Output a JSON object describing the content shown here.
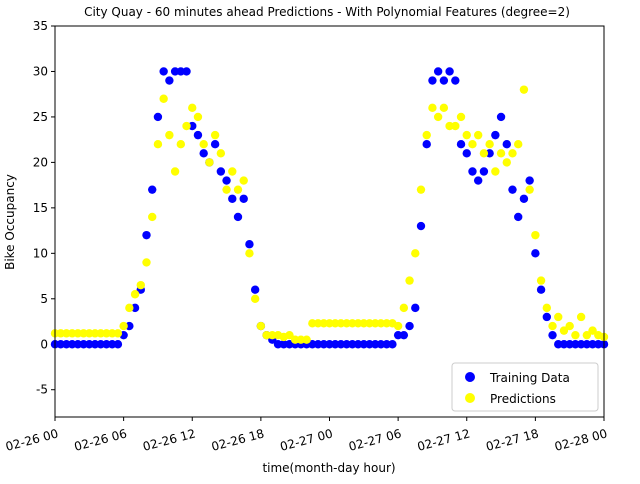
{
  "chart_data": {
    "type": "scatter",
    "title": "City Quay - 60 minutes ahead Predictions - With Polynomial Features (degree=2)",
    "x_label": "time(month-day hour)",
    "y_label": "Bike Occupancy",
    "x": [
      0,
      0.5,
      1,
      1.5,
      2,
      2.5,
      3,
      3.5,
      4,
      4.5,
      5,
      5.5,
      6,
      6.5,
      7,
      7.5,
      8,
      8.5,
      9,
      9.5,
      10,
      10.5,
      11,
      11.5,
      12,
      12.5,
      13,
      13.5,
      14,
      14.5,
      15,
      15.5,
      16,
      16.5,
      17,
      17.5,
      18,
      18.5,
      19,
      19.5,
      20,
      20.5,
      21,
      21.5,
      22,
      22.5,
      23,
      23.5,
      24,
      24.5,
      25,
      25.5,
      26,
      26.5,
      27,
      27.5,
      28,
      28.5,
      29,
      29.5,
      30,
      30.5,
      31,
      31.5,
      32,
      32.5,
      33,
      33.5,
      34,
      34.5,
      35,
      35.5,
      36,
      36.5,
      37,
      37.5,
      38,
      38.5,
      39,
      39.5,
      40,
      40.5,
      41,
      41.5,
      42,
      42.5,
      43,
      43.5,
      44,
      44.5,
      45,
      45.5,
      46,
      46.5,
      47,
      47.5,
      48
    ],
    "series": [
      {
        "name": "Training Data",
        "color": "#0000ff",
        "values": [
          0,
          0,
          0,
          0,
          0,
          0,
          0,
          0,
          0,
          0,
          0,
          0,
          1,
          2,
          4,
          6,
          12,
          17,
          25,
          30,
          29,
          30,
          30,
          30,
          24,
          23,
          21,
          20,
          22,
          19,
          18,
          16,
          14,
          16,
          11,
          6,
          2,
          1,
          0.5,
          0,
          0,
          0,
          0,
          0,
          0,
          0,
          0,
          0,
          0,
          0,
          0,
          0,
          0,
          0,
          0,
          0,
          0,
          0,
          0,
          0,
          1,
          1,
          2,
          4,
          13,
          22,
          29,
          30,
          29,
          30,
          29,
          22,
          21,
          19,
          18,
          19,
          21,
          23,
          25,
          22,
          17,
          14,
          16,
          18,
          10,
          6,
          3,
          1,
          0,
          0,
          0,
          0,
          0,
          0,
          0,
          0,
          0
        ]
      },
      {
        "name": "Predictions",
        "color": "#ffff00",
        "values": [
          1.2,
          1.2,
          1.2,
          1.2,
          1.2,
          1.2,
          1.2,
          1.2,
          1.2,
          1.2,
          1.2,
          1.2,
          2,
          4,
          5.5,
          6.5,
          9,
          14,
          22,
          27,
          23,
          19,
          22,
          24,
          26,
          25,
          22,
          20,
          23,
          21,
          17,
          19,
          17,
          18,
          10,
          5,
          2,
          1,
          1,
          1,
          0.8,
          1,
          0.5,
          0.5,
          0.5,
          2.3,
          2.3,
          2.3,
          2.3,
          2.3,
          2.3,
          2.3,
          2.3,
          2.3,
          2.3,
          2.3,
          2.3,
          2.3,
          2.3,
          2.3,
          2,
          4,
          7,
          10,
          17,
          23,
          26,
          25,
          26,
          24,
          24,
          25,
          23,
          22,
          23,
          21,
          22,
          19,
          21,
          20,
          21,
          22,
          28,
          17,
          12,
          7,
          4,
          2,
          3,
          1.5,
          2,
          1,
          3,
          1,
          1.5,
          1,
          0.8
        ]
      }
    ],
    "xlim": [
      0,
      48
    ],
    "xticks": [
      {
        "value": 0,
        "label": "02-26 00"
      },
      {
        "value": 6,
        "label": "02-26 06"
      },
      {
        "value": 12,
        "label": "02-26 12"
      },
      {
        "value": 18,
        "label": "02-26 18"
      },
      {
        "value": 24,
        "label": "02-27 00"
      },
      {
        "value": 30,
        "label": "02-27 06"
      },
      {
        "value": 36,
        "label": "02-27 12"
      },
      {
        "value": 42,
        "label": "02-27 18"
      },
      {
        "value": 48,
        "label": "02-28 00"
      }
    ],
    "ylim": [
      -8,
      35
    ],
    "yticks": [
      -5,
      0,
      5,
      10,
      15,
      20,
      25,
      30,
      35
    ],
    "legend": "lower right",
    "grid": false
  }
}
